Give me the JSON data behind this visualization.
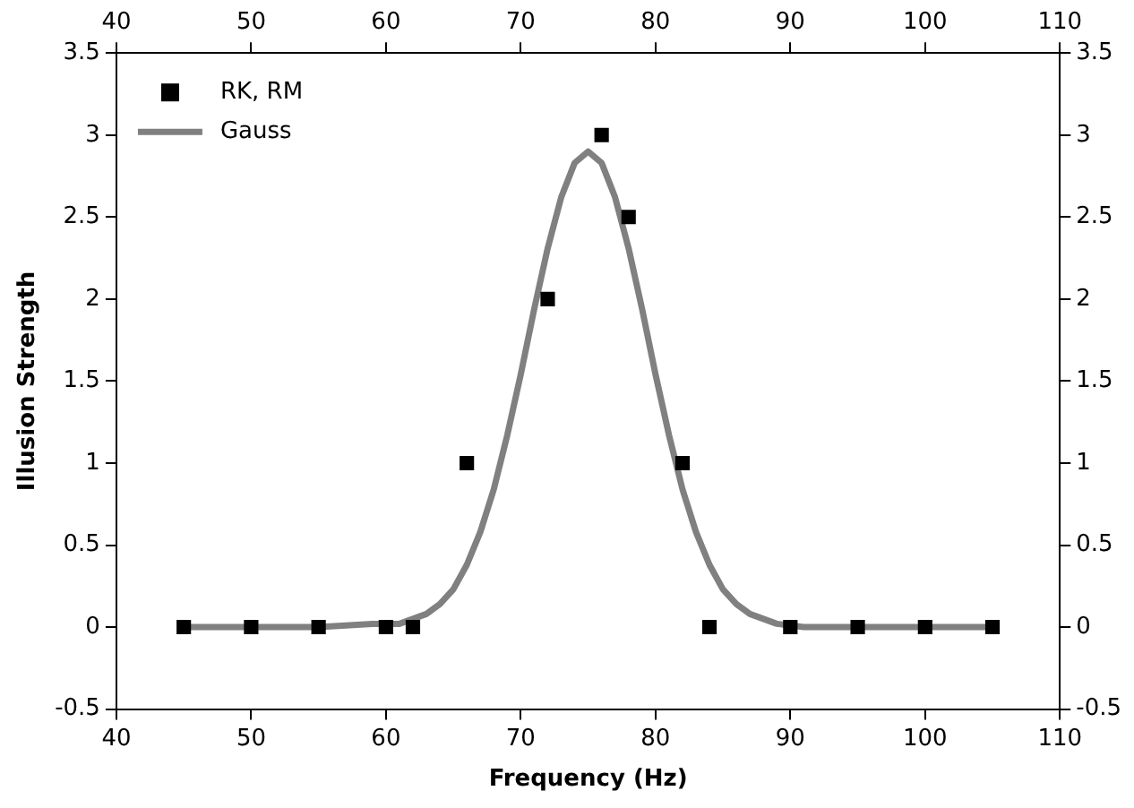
{
  "chart_data": {
    "type": "scatter",
    "xlabel": "Frequency (Hz)",
    "ylabel": "Illusion Strength",
    "xlim": [
      40,
      110
    ],
    "xticks": [
      40,
      50,
      60,
      70,
      80,
      90,
      100,
      110
    ],
    "x2lim": [
      40,
      110
    ],
    "x2ticks": [
      40,
      50,
      60,
      70,
      80,
      90,
      100,
      110
    ],
    "ylim": [
      -0.5,
      3.5
    ],
    "yticks": [
      -0.5,
      0,
      0.5,
      1,
      1.5,
      2,
      2.5,
      3,
      3.5
    ],
    "y2lim": [
      -0.5,
      3.5
    ],
    "y2ticks": [
      -0.5,
      0,
      0.5,
      1,
      1.5,
      2,
      2.5,
      3,
      3.5
    ],
    "grid": false,
    "legend": "top left",
    "series": [
      {
        "name": "RK, RM",
        "marker": "square",
        "color": "#000000",
        "x": [
          45,
          50,
          55,
          60,
          62,
          66,
          72,
          76,
          78,
          82,
          84,
          90,
          95,
          100,
          105
        ],
        "values": [
          0,
          0,
          0,
          0,
          0,
          1,
          2,
          3,
          2.5,
          1,
          0,
          0,
          0,
          0,
          0
        ]
      },
      {
        "name": "Gauss",
        "type": "line",
        "marker": "none",
        "line_style": "solid",
        "color": "#808080",
        "x": [
          45,
          55,
          59,
          61,
          63,
          64,
          65,
          66,
          67,
          68,
          69,
          70,
          71,
          72,
          73,
          74,
          75,
          76,
          77,
          78,
          79,
          80,
          81,
          82,
          83,
          84,
          85,
          86,
          87,
          89,
          91,
          95,
          105
        ],
        "values": [
          0,
          0,
          0.02,
          0.02,
          0.08,
          0.14,
          0.23,
          0.38,
          0.58,
          0.84,
          1.17,
          1.54,
          1.94,
          2.31,
          2.62,
          2.83,
          2.9,
          2.83,
          2.62,
          2.31,
          1.94,
          1.54,
          1.17,
          0.84,
          0.58,
          0.38,
          0.23,
          0.14,
          0.08,
          0.02,
          0,
          0,
          0
        ]
      }
    ]
  }
}
